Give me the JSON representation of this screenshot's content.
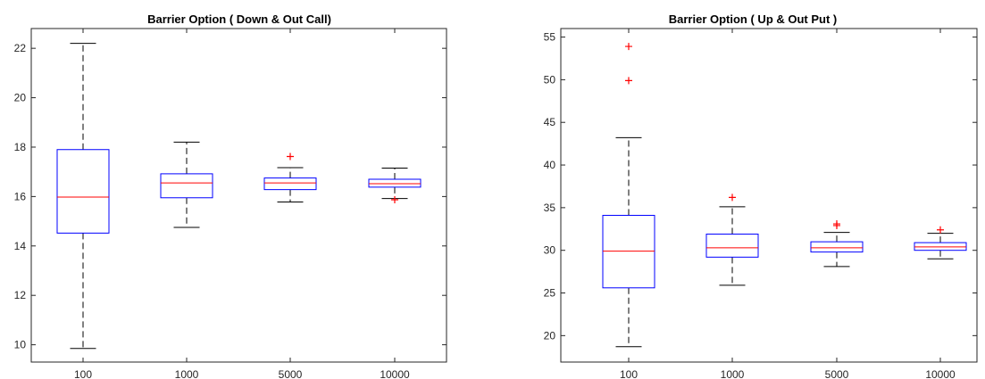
{
  "chart_data": [
    {
      "type": "box",
      "title": "Barrier Option ( Down & Out Call)",
      "xlabel": "",
      "ylabel": "",
      "categories": [
        "100",
        "1000",
        "5000",
        "10000"
      ],
      "ylim": [
        9.3,
        22.8
      ],
      "yticks": [
        10,
        12,
        14,
        16,
        18,
        20,
        22
      ],
      "grid": false,
      "colors": {
        "box": "#0000ff",
        "median": "#ff0000",
        "whisker": "#000000",
        "outlier": "#ff0000"
      },
      "boxes": [
        {
          "whislo": 9.85,
          "q1": 14.52,
          "median": 15.98,
          "q3": 17.9,
          "whishi": 22.2,
          "outliers": []
        },
        {
          "whislo": 14.75,
          "q1": 15.95,
          "median": 16.55,
          "q3": 16.92,
          "whishi": 18.2,
          "outliers": []
        },
        {
          "whislo": 15.78,
          "q1": 16.28,
          "median": 16.55,
          "q3": 16.75,
          "whishi": 17.17,
          "outliers": [
            17.62
          ]
        },
        {
          "whislo": 15.92,
          "q1": 16.38,
          "median": 16.52,
          "q3": 16.7,
          "whishi": 17.15,
          "outliers": [
            15.87
          ]
        }
      ]
    },
    {
      "type": "box",
      "title": "Barrier Option ( Up & Out Put )",
      "xlabel": "",
      "ylabel": "",
      "categories": [
        "100",
        "1000",
        "5000",
        "10000"
      ],
      "ylim": [
        16.9,
        56.0
      ],
      "yticks": [
        20,
        25,
        30,
        35,
        40,
        45,
        50,
        55
      ],
      "grid": false,
      "colors": {
        "box": "#0000ff",
        "median": "#ff0000",
        "whisker": "#000000",
        "outlier": "#ff0000"
      },
      "boxes": [
        {
          "whislo": 18.7,
          "q1": 25.6,
          "median": 29.9,
          "q3": 34.1,
          "whishi": 43.2,
          "outliers": [
            49.9,
            53.9
          ]
        },
        {
          "whislo": 25.9,
          "q1": 29.2,
          "median": 30.3,
          "q3": 31.9,
          "whishi": 35.1,
          "outliers": [
            36.2
          ]
        },
        {
          "whislo": 28.1,
          "q1": 29.8,
          "median": 30.3,
          "q3": 31.0,
          "whishi": 32.1,
          "outliers": [
            32.9,
            33.1
          ]
        },
        {
          "whislo": 29.0,
          "q1": 30.0,
          "median": 30.4,
          "q3": 30.9,
          "whishi": 32.0,
          "outliers": [
            32.4
          ]
        }
      ]
    }
  ]
}
